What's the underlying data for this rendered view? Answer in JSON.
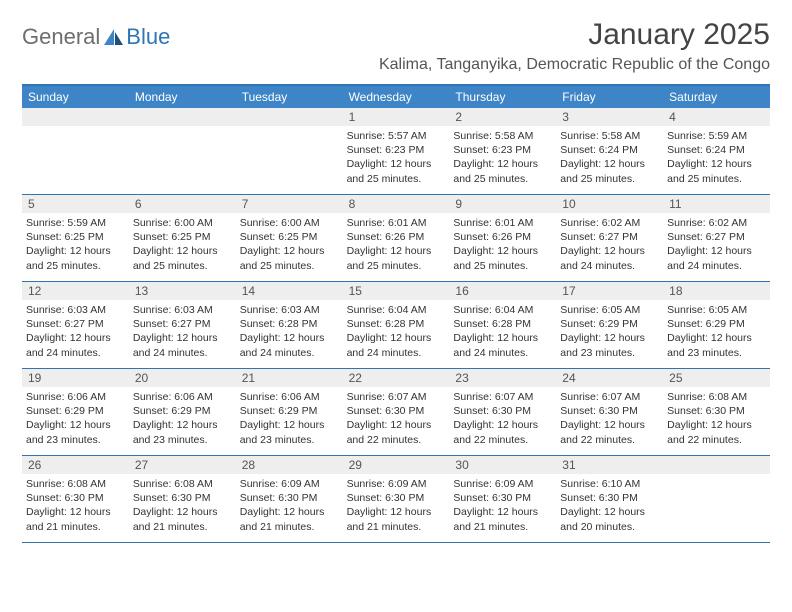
{
  "logo": {
    "word1": "General",
    "word2": "Blue"
  },
  "title": "January 2025",
  "subtitle": "Kalima, Tanganyika, Democratic Republic of the Congo",
  "colors": {
    "header_bg": "#3d85c6",
    "header_border": "#2f74b5",
    "daynum_bg": "#eeeeee",
    "text": "#333333",
    "logo_grey": "#6e6e6e",
    "logo_blue": "#2f74b5"
  },
  "typography": {
    "title_fontsize": 30,
    "subtitle_fontsize": 16,
    "dayheader_fontsize": 12,
    "daynum_fontsize": 12,
    "body_fontsize": 10.5
  },
  "day_names": [
    "Sunday",
    "Monday",
    "Tuesday",
    "Wednesday",
    "Thursday",
    "Friday",
    "Saturday"
  ],
  "weeks": [
    [
      null,
      null,
      null,
      {
        "n": "1",
        "sr": "5:57 AM",
        "ss": "6:23 PM",
        "dl": "12 hours and 25 minutes."
      },
      {
        "n": "2",
        "sr": "5:58 AM",
        "ss": "6:23 PM",
        "dl": "12 hours and 25 minutes."
      },
      {
        "n": "3",
        "sr": "5:58 AM",
        "ss": "6:24 PM",
        "dl": "12 hours and 25 minutes."
      },
      {
        "n": "4",
        "sr": "5:59 AM",
        "ss": "6:24 PM",
        "dl": "12 hours and 25 minutes."
      }
    ],
    [
      {
        "n": "5",
        "sr": "5:59 AM",
        "ss": "6:25 PM",
        "dl": "12 hours and 25 minutes."
      },
      {
        "n": "6",
        "sr": "6:00 AM",
        "ss": "6:25 PM",
        "dl": "12 hours and 25 minutes."
      },
      {
        "n": "7",
        "sr": "6:00 AM",
        "ss": "6:25 PM",
        "dl": "12 hours and 25 minutes."
      },
      {
        "n": "8",
        "sr": "6:01 AM",
        "ss": "6:26 PM",
        "dl": "12 hours and 25 minutes."
      },
      {
        "n": "9",
        "sr": "6:01 AM",
        "ss": "6:26 PM",
        "dl": "12 hours and 25 minutes."
      },
      {
        "n": "10",
        "sr": "6:02 AM",
        "ss": "6:27 PM",
        "dl": "12 hours and 24 minutes."
      },
      {
        "n": "11",
        "sr": "6:02 AM",
        "ss": "6:27 PM",
        "dl": "12 hours and 24 minutes."
      }
    ],
    [
      {
        "n": "12",
        "sr": "6:03 AM",
        "ss": "6:27 PM",
        "dl": "12 hours and 24 minutes."
      },
      {
        "n": "13",
        "sr": "6:03 AM",
        "ss": "6:27 PM",
        "dl": "12 hours and 24 minutes."
      },
      {
        "n": "14",
        "sr": "6:03 AM",
        "ss": "6:28 PM",
        "dl": "12 hours and 24 minutes."
      },
      {
        "n": "15",
        "sr": "6:04 AM",
        "ss": "6:28 PM",
        "dl": "12 hours and 24 minutes."
      },
      {
        "n": "16",
        "sr": "6:04 AM",
        "ss": "6:28 PM",
        "dl": "12 hours and 24 minutes."
      },
      {
        "n": "17",
        "sr": "6:05 AM",
        "ss": "6:29 PM",
        "dl": "12 hours and 23 minutes."
      },
      {
        "n": "18",
        "sr": "6:05 AM",
        "ss": "6:29 PM",
        "dl": "12 hours and 23 minutes."
      }
    ],
    [
      {
        "n": "19",
        "sr": "6:06 AM",
        "ss": "6:29 PM",
        "dl": "12 hours and 23 minutes."
      },
      {
        "n": "20",
        "sr": "6:06 AM",
        "ss": "6:29 PM",
        "dl": "12 hours and 23 minutes."
      },
      {
        "n": "21",
        "sr": "6:06 AM",
        "ss": "6:29 PM",
        "dl": "12 hours and 23 minutes."
      },
      {
        "n": "22",
        "sr": "6:07 AM",
        "ss": "6:30 PM",
        "dl": "12 hours and 22 minutes."
      },
      {
        "n": "23",
        "sr": "6:07 AM",
        "ss": "6:30 PM",
        "dl": "12 hours and 22 minutes."
      },
      {
        "n": "24",
        "sr": "6:07 AM",
        "ss": "6:30 PM",
        "dl": "12 hours and 22 minutes."
      },
      {
        "n": "25",
        "sr": "6:08 AM",
        "ss": "6:30 PM",
        "dl": "12 hours and 22 minutes."
      }
    ],
    [
      {
        "n": "26",
        "sr": "6:08 AM",
        "ss": "6:30 PM",
        "dl": "12 hours and 21 minutes."
      },
      {
        "n": "27",
        "sr": "6:08 AM",
        "ss": "6:30 PM",
        "dl": "12 hours and 21 minutes."
      },
      {
        "n": "28",
        "sr": "6:09 AM",
        "ss": "6:30 PM",
        "dl": "12 hours and 21 minutes."
      },
      {
        "n": "29",
        "sr": "6:09 AM",
        "ss": "6:30 PM",
        "dl": "12 hours and 21 minutes."
      },
      {
        "n": "30",
        "sr": "6:09 AM",
        "ss": "6:30 PM",
        "dl": "12 hours and 21 minutes."
      },
      {
        "n": "31",
        "sr": "6:10 AM",
        "ss": "6:30 PM",
        "dl": "12 hours and 20 minutes."
      },
      null
    ]
  ],
  "labels": {
    "sunrise": "Sunrise:",
    "sunset": "Sunset:",
    "daylight": "Daylight:"
  }
}
